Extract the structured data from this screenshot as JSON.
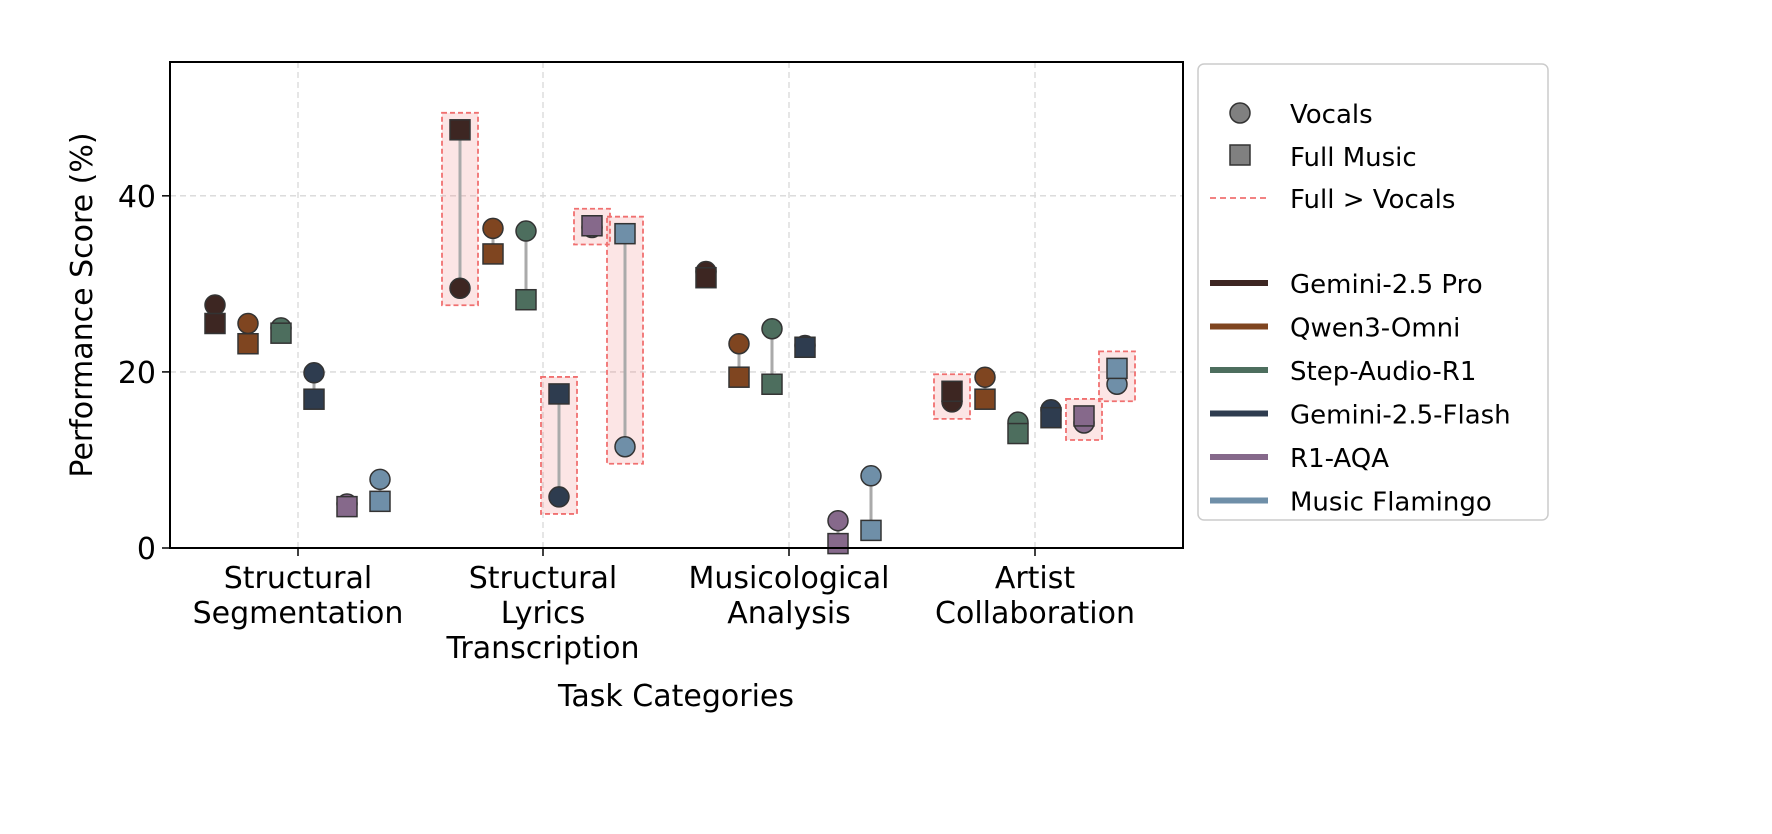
{
  "chart_data": {
    "type": "scatter",
    "title": "",
    "xlabel": "Task Categories",
    "ylabel": "Performance Score (%)",
    "ylim": [
      0,
      55.2
    ],
    "yticks": [
      0,
      20,
      40
    ],
    "grid": true,
    "legend_placement": "outside-right",
    "categories": [
      [
        "Structural",
        "Segmentation"
      ],
      [
        "Structural",
        "Lyrics",
        "Transcription"
      ],
      [
        "Musicological",
        "Analysis"
      ],
      [
        "Artist",
        "Collaboration"
      ]
    ],
    "marker_legend": [
      {
        "label": "Vocals",
        "marker": "circle"
      },
      {
        "label": "Full Music",
        "marker": "square"
      },
      {
        "label": "Full > Vocals",
        "marker": "dashed-box"
      }
    ],
    "highlight_color": "#f07070",
    "series": [
      {
        "name": "Gemini-2.5 Pro",
        "color": "#3d2622",
        "vocals": [
          27.6,
          29.5,
          31.4,
          16.6
        ],
        "full_music": [
          25.5,
          47.5,
          30.7,
          17.8
        ]
      },
      {
        "name": "Qwen3-Omni",
        "color": "#7f4520",
        "vocals": [
          25.5,
          36.3,
          23.2,
          19.4
        ],
        "full_music": [
          23.2,
          33.4,
          19.4,
          16.9
        ]
      },
      {
        "name": "Step-Audio-R1",
        "color": "#4d6e5e",
        "vocals": [
          25.0,
          36.0,
          24.9,
          14.3
        ],
        "full_music": [
          24.4,
          28.2,
          18.6,
          13.0
        ]
      },
      {
        "name": "Gemini-2.5-Flash",
        "color": "#2e3c4f",
        "vocals": [
          19.9,
          5.8,
          23.0,
          15.7
        ],
        "full_music": [
          16.9,
          17.5,
          22.8,
          14.8
        ]
      },
      {
        "name": "R1-AQA",
        "color": "#86698b",
        "vocals": [
          5.0,
          36.4,
          3.1,
          14.2
        ],
        "full_music": [
          4.7,
          36.6,
          0.5,
          15.0
        ]
      },
      {
        "name": "Music Flamingo",
        "color": "#6f8fa8",
        "vocals": [
          7.8,
          11.5,
          8.2,
          18.6
        ],
        "full_music": [
          5.3,
          35.7,
          2.0,
          20.4
        ]
      }
    ]
  }
}
